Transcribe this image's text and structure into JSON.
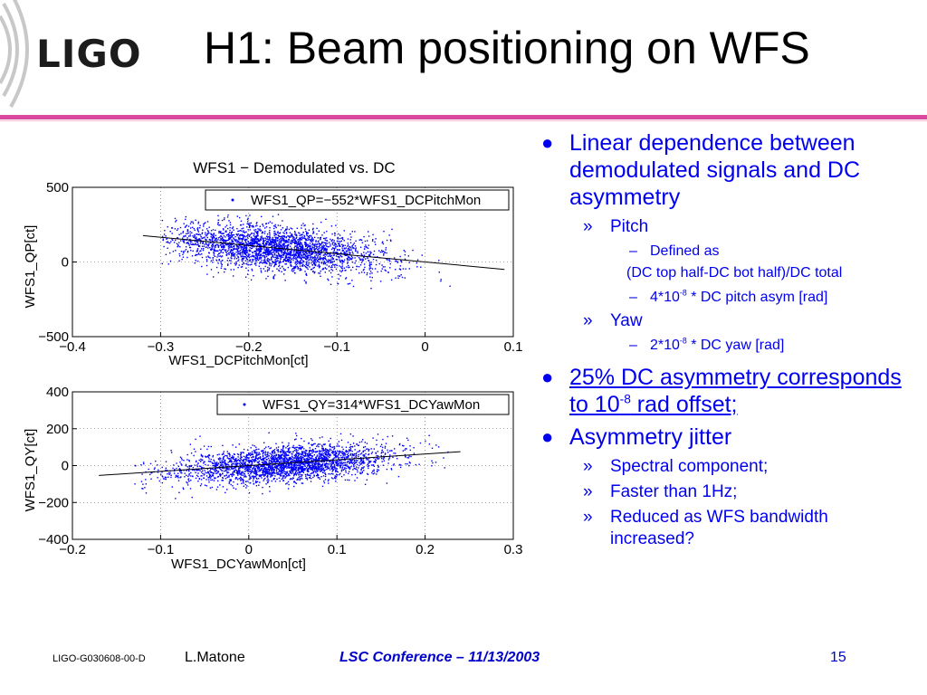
{
  "slide": {
    "logo": "LIGO",
    "title": "H1: Beam positioning on WFS"
  },
  "chart_data": [
    {
      "type": "scatter",
      "title": "WFS1  − Demodulated vs. DC",
      "xlabel": "WFS1_DCPitchMon[ct]",
      "ylabel": "WFS1_QP[ct]",
      "xlim": [
        -0.4,
        0.1
      ],
      "ylim": [
        -500,
        500
      ],
      "xticks": [
        -0.4,
        -0.3,
        -0.2,
        -0.1,
        0,
        0.1
      ],
      "yticks": [
        -500,
        0,
        500
      ],
      "xtick_labels": [
        "−0.4",
        "−0.3",
        "−0.2",
        "−0.1",
        "0",
        "0.1"
      ],
      "ytick_labels": [
        "−500",
        "0",
        "500"
      ],
      "grid": true,
      "legend": {
        "position": "top-right",
        "entry": "WFS1_QP=−552*WFS1_DCPitchMon"
      },
      "cloud": {
        "x_center": -0.17,
        "x_spread": 0.06,
        "y_spread": 75,
        "x_range": [
          -0.3,
          0.07
        ]
      },
      "fit": {
        "slope": -552,
        "intercept": 0,
        "x_range": [
          -0.32,
          0.09
        ]
      },
      "point_color": "#0000ff"
    },
    {
      "type": "scatter",
      "title": "",
      "xlabel": "WFS1_DCYawMon[ct]",
      "ylabel": "WFS1_QY[ct]",
      "xlim": [
        -0.2,
        0.3
      ],
      "ylim": [
        -400,
        400
      ],
      "xticks": [
        -0.2,
        -0.1,
        0,
        0.1,
        0.2,
        0.3
      ],
      "yticks": [
        -400,
        -200,
        0,
        200,
        400
      ],
      "xtick_labels": [
        "−0.2",
        "−0.1",
        "0",
        "0.1",
        "0.2",
        "0.3"
      ],
      "ytick_labels": [
        "−400",
        "−200",
        "0",
        "200",
        "400"
      ],
      "grid": true,
      "legend": {
        "position": "top-right",
        "entry": "WFS1_QY=314*WFS1_DCYawMon"
      },
      "cloud": {
        "x_center": 0.04,
        "x_spread": 0.06,
        "y_spread": 48,
        "x_range": [
          -0.13,
          0.23
        ]
      },
      "fit": {
        "slope": 314,
        "intercept": 0,
        "x_range": [
          -0.17,
          0.24
        ]
      },
      "point_color": "#0000ff"
    }
  ],
  "bullets": {
    "b1": "Linear dependence between demodulated signals and DC asymmetry",
    "b1_pitch": "Pitch",
    "b1_pitch_defined": "Defined as",
    "b1_pitch_formula": "(DC top half-DC bot half)/DC total",
    "b1_pitch_value_pre": "4*10",
    "b1_pitch_value_exp": "-8",
    "b1_pitch_value_post": " * DC pitch asym [rad]",
    "b1_yaw": "Yaw",
    "b1_yaw_value_pre": "2*10",
    "b1_yaw_value_exp": "-8",
    "b1_yaw_value_post": " * DC yaw [rad]",
    "b2_pre": "25% DC asymmetry corresponds to 10",
    "b2_exp": "-8",
    "b2_post": " rad offset;",
    "b3": "Asymmetry jitter",
    "b3_items": [
      "Spectral component;",
      "Faster than 1Hz;",
      "Reduced as WFS bandwidth increased?"
    ]
  },
  "footer": {
    "doc_id": "LIGO-G030608-00-D",
    "author": "L.Matone",
    "conference": "LSC Conference – 11/13/2003",
    "page": "15"
  },
  "colors": {
    "accent_rule": "#d9489e",
    "bullet_text": "#0000ee",
    "points": "#0000ff"
  }
}
